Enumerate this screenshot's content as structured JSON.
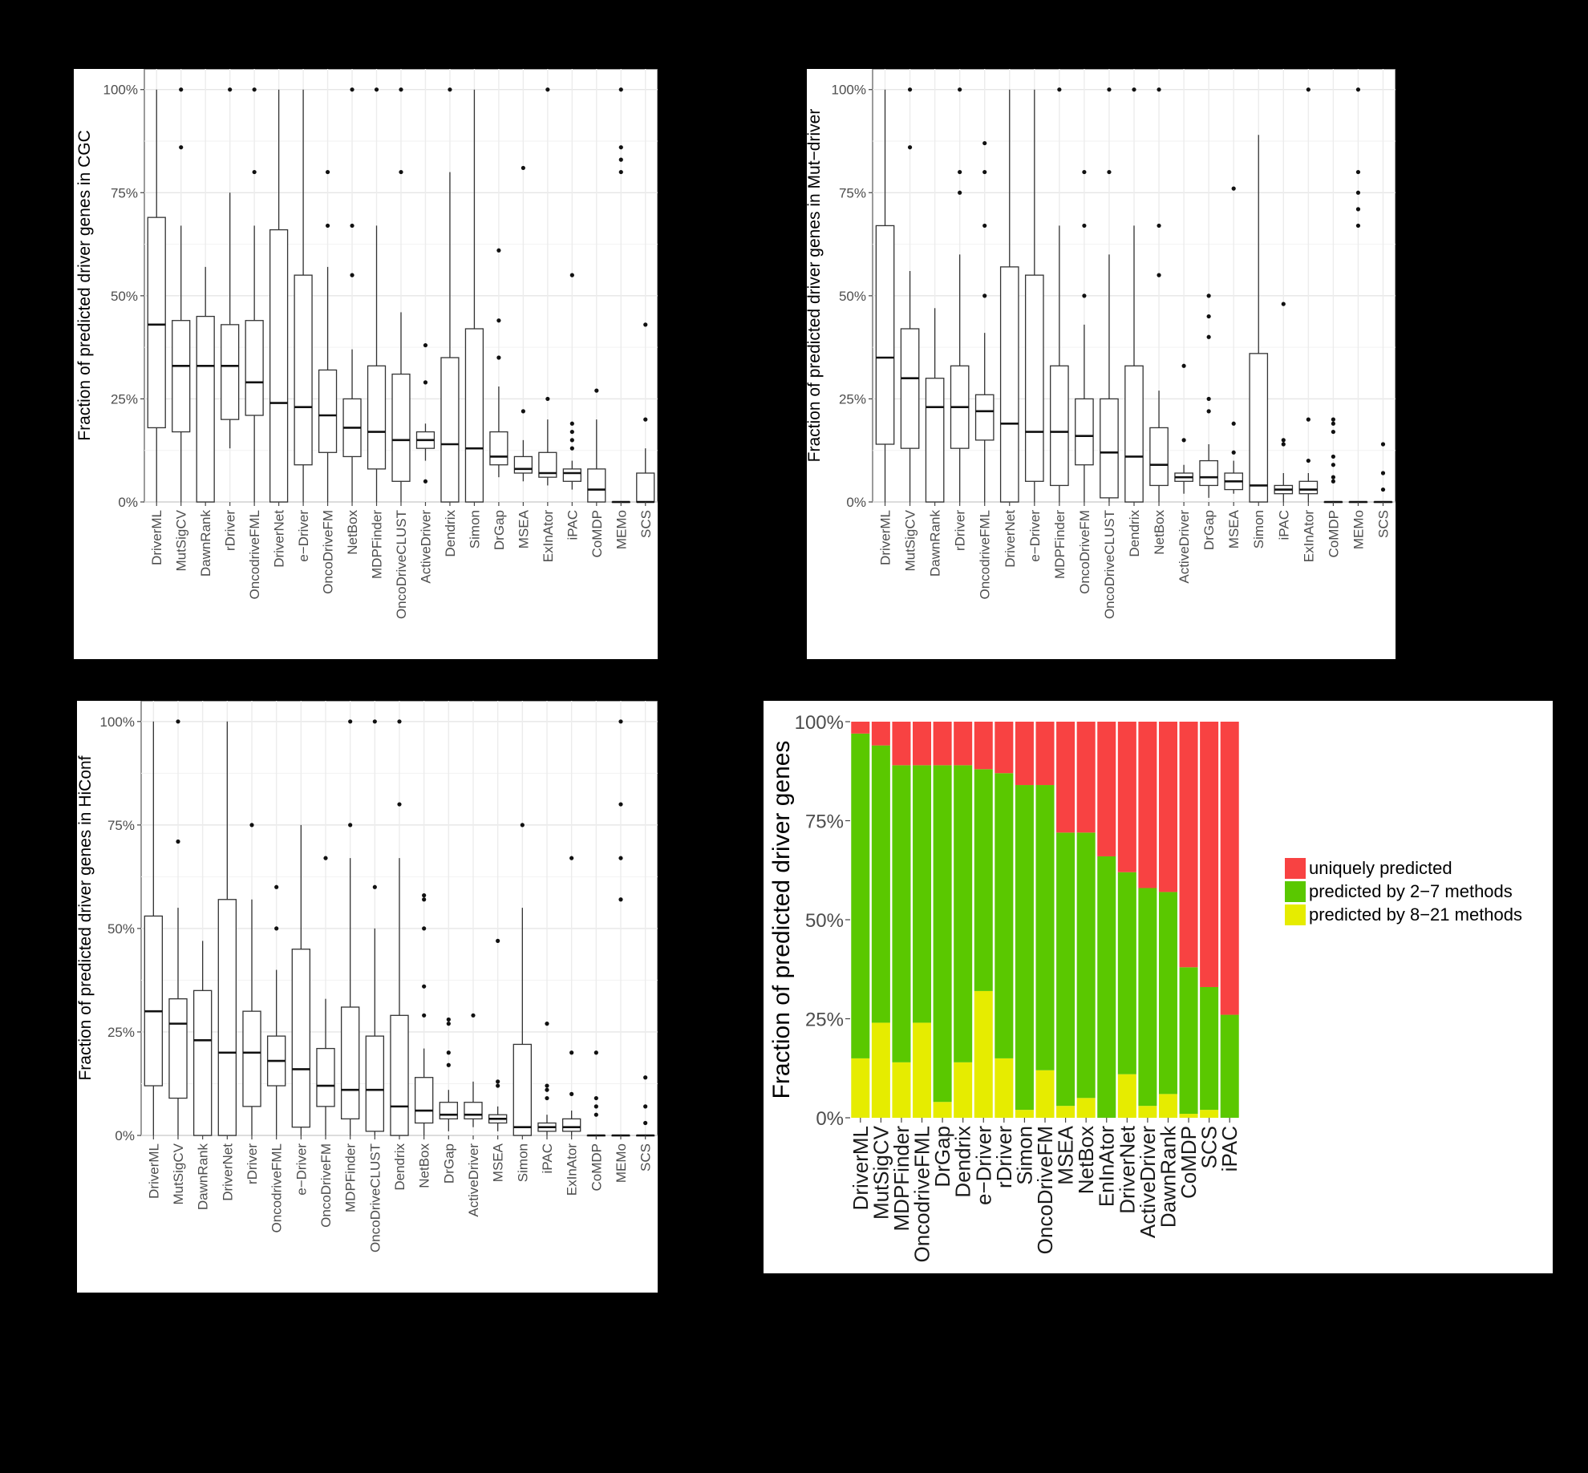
{
  "caption": {
    "line1": "",
    "line2": ""
  },
  "chart_data": [
    {
      "type": "boxplot",
      "ylabel": "Fraction of predicted driver genes in CGC",
      "yticks": [
        "0%",
        "25%",
        "50%",
        "75%",
        "100%"
      ],
      "ylim": [
        0,
        1.05
      ],
      "grid": true,
      "categories": [
        "DriverML",
        "MutSigCV",
        "DawnRank",
        "rDriver",
        "OncodriveFML",
        "DriverNet",
        "e−Driver",
        "OncoDriveFM",
        "NetBox",
        "MDPFinder",
        "OncoDriveCLUST",
        "ActiveDriver",
        "Dendrix",
        "Simon",
        "DrGap",
        "MSEA",
        "ExInAtor",
        "iPAC",
        "CoMDP",
        "MEMo",
        "SCS"
      ],
      "boxes": [
        {
          "lw": 0,
          "q1": 0.18,
          "med": 0.43,
          "q3": 0.69,
          "hw": 1.0,
          "out": []
        },
        {
          "lw": 0,
          "q1": 0.17,
          "med": 0.33,
          "q3": 0.44,
          "hw": 0.67,
          "out": [
            0.86,
            1.0
          ]
        },
        {
          "lw": 0,
          "q1": 0,
          "med": 0.33,
          "q3": 0.45,
          "hw": 0.57,
          "out": []
        },
        {
          "lw": 0.13,
          "q1": 0.2,
          "med": 0.33,
          "q3": 0.43,
          "hw": 0.75,
          "out": [
            1.0
          ]
        },
        {
          "lw": 0,
          "q1": 0.21,
          "med": 0.29,
          "q3": 0.44,
          "hw": 0.67,
          "out": [
            0.8,
            1.0
          ]
        },
        {
          "lw": 0,
          "q1": 0,
          "med": 0.24,
          "q3": 0.66,
          "hw": 1.0,
          "out": []
        },
        {
          "lw": 0,
          "q1": 0.09,
          "med": 0.23,
          "q3": 0.55,
          "hw": 1.0,
          "out": []
        },
        {
          "lw": 0,
          "q1": 0.12,
          "med": 0.21,
          "q3": 0.32,
          "hw": 0.57,
          "out": [
            0.67,
            0.8
          ]
        },
        {
          "lw": 0,
          "q1": 0.11,
          "med": 0.18,
          "q3": 0.25,
          "hw": 0.37,
          "out": [
            0.55,
            0.67,
            1.0
          ]
        },
        {
          "lw": 0,
          "q1": 0.08,
          "med": 0.17,
          "q3": 0.33,
          "hw": 0.67,
          "out": [
            1.0
          ]
        },
        {
          "lw": 0,
          "q1": 0.05,
          "med": 0.15,
          "q3": 0.31,
          "hw": 0.46,
          "out": [
            0.8,
            1.0
          ]
        },
        {
          "lw": 0.1,
          "q1": 0.13,
          "med": 0.15,
          "q3": 0.17,
          "hw": 0.19,
          "out": [
            0.05,
            0.29,
            0.38
          ]
        },
        {
          "lw": 0,
          "q1": 0,
          "med": 0.14,
          "q3": 0.35,
          "hw": 0.8,
          "out": [
            1.0
          ]
        },
        {
          "lw": 0,
          "q1": 0,
          "med": 0.13,
          "q3": 0.42,
          "hw": 1.0,
          "out": []
        },
        {
          "lw": 0.06,
          "q1": 0.09,
          "med": 0.11,
          "q3": 0.17,
          "hw": 0.28,
          "out": [
            0.35,
            0.44,
            0.61
          ]
        },
        {
          "lw": 0.05,
          "q1": 0.07,
          "med": 0.08,
          "q3": 0.11,
          "hw": 0.15,
          "out": [
            0.22,
            0.81
          ]
        },
        {
          "lw": 0.04,
          "q1": 0.06,
          "med": 0.07,
          "q3": 0.12,
          "hw": 0.2,
          "out": [
            0.25,
            1.0
          ]
        },
        {
          "lw": 0.03,
          "q1": 0.05,
          "med": 0.07,
          "q3": 0.08,
          "hw": 0.1,
          "out": [
            0.13,
            0.15,
            0.17,
            0.19,
            0.55
          ]
        },
        {
          "lw": 0,
          "q1": 0,
          "med": 0.03,
          "q3": 0.08,
          "hw": 0.2,
          "out": [
            0.27
          ]
        },
        {
          "lw": 0,
          "q1": 0,
          "med": 0,
          "q3": 0,
          "hw": 0,
          "out": [
            0.8,
            0.83,
            0.86,
            1.0
          ]
        },
        {
          "lw": 0,
          "q1": 0,
          "med": 0,
          "q3": 0.07,
          "hw": 0.13,
          "out": [
            0.2,
            0.43
          ]
        }
      ]
    },
    {
      "type": "boxplot",
      "ylabel": "Fraction of predicted driver genes in Mut−driver",
      "yticks": [
        "0%",
        "25%",
        "50%",
        "75%",
        "100%"
      ],
      "ylim": [
        0,
        1.05
      ],
      "grid": true,
      "categories": [
        "DriverML",
        "MutSigCV",
        "DawnRank",
        "rDriver",
        "OncodriveFML",
        "DriverNet",
        "e−Driver",
        "MDPFinder",
        "OncoDriveFM",
        "OncoDriveCLUST",
        "Dendrix",
        "NetBox",
        "ActiveDriver",
        "DrGap",
        "MSEA",
        "Simon",
        "iPAC",
        "ExInAtor",
        "CoMDP",
        "MEMo",
        "SCS"
      ],
      "boxes": [
        {
          "lw": 0,
          "q1": 0.14,
          "med": 0.35,
          "q3": 0.67,
          "hw": 1.0,
          "out": []
        },
        {
          "lw": 0,
          "q1": 0.13,
          "med": 0.3,
          "q3": 0.42,
          "hw": 0.56,
          "out": [
            0.86,
            1.0
          ]
        },
        {
          "lw": 0,
          "q1": 0,
          "med": 0.23,
          "q3": 0.3,
          "hw": 0.47,
          "out": []
        },
        {
          "lw": 0,
          "q1": 0.13,
          "med": 0.23,
          "q3": 0.33,
          "hw": 0.6,
          "out": [
            0.75,
            0.8,
            1.0
          ]
        },
        {
          "lw": 0,
          "q1": 0.15,
          "med": 0.22,
          "q3": 0.26,
          "hw": 0.41,
          "out": [
            0.5,
            0.67,
            0.8,
            0.87
          ]
        },
        {
          "lw": 0,
          "q1": 0,
          "med": 0.19,
          "q3": 0.57,
          "hw": 1.0,
          "out": []
        },
        {
          "lw": 0,
          "q1": 0.05,
          "med": 0.17,
          "q3": 0.55,
          "hw": 1.0,
          "out": []
        },
        {
          "lw": 0,
          "q1": 0.04,
          "med": 0.17,
          "q3": 0.33,
          "hw": 0.67,
          "out": [
            1.0
          ]
        },
        {
          "lw": 0,
          "q1": 0.09,
          "med": 0.16,
          "q3": 0.25,
          "hw": 0.43,
          "out": [
            0.5,
            0.67,
            0.8
          ]
        },
        {
          "lw": 0,
          "q1": 0.01,
          "med": 0.12,
          "q3": 0.25,
          "hw": 0.6,
          "out": [
            0.8,
            1.0
          ]
        },
        {
          "lw": 0,
          "q1": 0,
          "med": 0.11,
          "q3": 0.33,
          "hw": 0.67,
          "out": [
            1.0
          ]
        },
        {
          "lw": 0,
          "q1": 0.04,
          "med": 0.09,
          "q3": 0.18,
          "hw": 0.27,
          "out": [
            0.55,
            0.67,
            1.0
          ]
        },
        {
          "lw": 0.02,
          "q1": 0.05,
          "med": 0.06,
          "q3": 0.07,
          "hw": 0.09,
          "out": [
            0.15,
            0.33
          ]
        },
        {
          "lw": 0.01,
          "q1": 0.04,
          "med": 0.06,
          "q3": 0.1,
          "hw": 0.14,
          "out": [
            0.22,
            0.25,
            0.4,
            0.45,
            0.5
          ]
        },
        {
          "lw": 0.02,
          "q1": 0.03,
          "med": 0.05,
          "q3": 0.07,
          "hw": 0.1,
          "out": [
            0.12,
            0.19,
            0.76
          ]
        },
        {
          "lw": 0,
          "q1": 0,
          "med": 0.04,
          "q3": 0.36,
          "hw": 0.89,
          "out": []
        },
        {
          "lw": 0,
          "q1": 0.02,
          "med": 0.03,
          "q3": 0.04,
          "hw": 0.07,
          "out": [
            0.14,
            0.15,
            0.48
          ]
        },
        {
          "lw": 0,
          "q1": 0.02,
          "med": 0.03,
          "q3": 0.05,
          "hw": 0.07,
          "out": [
            0.1,
            0.2,
            1.0
          ]
        },
        {
          "lw": 0,
          "q1": 0,
          "med": 0,
          "q3": 0,
          "hw": 0,
          "out": [
            0.05,
            0.06,
            0.09,
            0.11,
            0.17,
            0.19,
            0.2
          ]
        },
        {
          "lw": 0,
          "q1": 0,
          "med": 0,
          "q3": 0,
          "hw": 0,
          "out": [
            0.67,
            0.71,
            0.75,
            0.8,
            1.0
          ]
        },
        {
          "lw": 0,
          "q1": 0,
          "med": 0,
          "q3": 0,
          "hw": 0,
          "out": [
            0.03,
            0.07,
            0.14
          ]
        }
      ]
    },
    {
      "type": "boxplot",
      "ylabel": "Fraction of predicted driver genes in HiConf",
      "yticks": [
        "0%",
        "25%",
        "50%",
        "75%",
        "100%"
      ],
      "ylim": [
        0,
        1.05
      ],
      "grid": true,
      "categories": [
        "DriverML",
        "MutSigCV",
        "DawnRank",
        "DriverNet",
        "rDriver",
        "OncodriveFML",
        "e−Driver",
        "OncoDriveFM",
        "MDPFinder",
        "OncoDriveCLUST",
        "Dendrix",
        "NetBox",
        "DrGap",
        "ActiveDriver",
        "MSEA",
        "Simon",
        "iPAC",
        "ExInAtor",
        "CoMDP",
        "MEMo",
        "SCS"
      ],
      "boxes": [
        {
          "lw": 0,
          "q1": 0.12,
          "med": 0.3,
          "q3": 0.53,
          "hw": 1.0,
          "out": []
        },
        {
          "lw": 0,
          "q1": 0.09,
          "med": 0.27,
          "q3": 0.33,
          "hw": 0.55,
          "out": [
            0.71,
            1.0
          ]
        },
        {
          "lw": 0,
          "q1": 0,
          "med": 0.23,
          "q3": 0.35,
          "hw": 0.47,
          "out": []
        },
        {
          "lw": 0,
          "q1": 0,
          "med": 0.2,
          "q3": 0.57,
          "hw": 1.0,
          "out": []
        },
        {
          "lw": 0,
          "q1": 0.07,
          "med": 0.2,
          "q3": 0.3,
          "hw": 0.57,
          "out": [
            0.75
          ]
        },
        {
          "lw": 0,
          "q1": 0.12,
          "med": 0.18,
          "q3": 0.24,
          "hw": 0.4,
          "out": [
            0.5,
            0.6
          ]
        },
        {
          "lw": 0,
          "q1": 0.02,
          "med": 0.16,
          "q3": 0.45,
          "hw": 0.75,
          "out": []
        },
        {
          "lw": 0,
          "q1": 0.07,
          "med": 0.12,
          "q3": 0.21,
          "hw": 0.33,
          "out": [
            0.67
          ]
        },
        {
          "lw": 0,
          "q1": 0.04,
          "med": 0.11,
          "q3": 0.31,
          "hw": 0.67,
          "out": [
            0.75,
            1.0
          ]
        },
        {
          "lw": 0,
          "q1": 0.01,
          "med": 0.11,
          "q3": 0.24,
          "hw": 0.5,
          "out": [
            0.6,
            1.0
          ]
        },
        {
          "lw": 0,
          "q1": 0,
          "med": 0.07,
          "q3": 0.29,
          "hw": 0.67,
          "out": [
            0.8,
            1.0
          ]
        },
        {
          "lw": 0,
          "q1": 0.03,
          "med": 0.06,
          "q3": 0.14,
          "hw": 0.21,
          "out": [
            0.29,
            0.36,
            0.5,
            0.57,
            0.58
          ]
        },
        {
          "lw": 0.01,
          "q1": 0.04,
          "med": 0.05,
          "q3": 0.08,
          "hw": 0.11,
          "out": [
            0.17,
            0.2,
            0.27,
            0.28
          ]
        },
        {
          "lw": 0.02,
          "q1": 0.04,
          "med": 0.05,
          "q3": 0.08,
          "hw": 0.13,
          "out": [
            0.29
          ]
        },
        {
          "lw": 0.01,
          "q1": 0.03,
          "med": 0.04,
          "q3": 0.05,
          "hw": 0.07,
          "out": [
            0.12,
            0.13,
            0.47
          ]
        },
        {
          "lw": 0,
          "q1": 0,
          "med": 0.02,
          "q3": 0.22,
          "hw": 0.55,
          "out": [
            0.75
          ]
        },
        {
          "lw": 0,
          "q1": 0.01,
          "med": 0.02,
          "q3": 0.03,
          "hw": 0.05,
          "out": [
            0.09,
            0.11,
            0.12,
            0.27
          ]
        },
        {
          "lw": 0,
          "q1": 0.01,
          "med": 0.02,
          "q3": 0.04,
          "hw": 0.06,
          "out": [
            0.1,
            0.2,
            0.67
          ]
        },
        {
          "lw": 0,
          "q1": 0,
          "med": 0,
          "q3": 0,
          "hw": 0,
          "out": [
            0.05,
            0.07,
            0.09,
            0.2
          ]
        },
        {
          "lw": 0,
          "q1": 0,
          "med": 0,
          "q3": 0,
          "hw": 0,
          "out": [
            0.57,
            0.67,
            0.8,
            1.0
          ]
        },
        {
          "lw": 0,
          "q1": 0,
          "med": 0,
          "q3": 0,
          "hw": 0,
          "out": [
            0.03,
            0.07,
            0.14
          ]
        }
      ]
    },
    {
      "type": "bar",
      "stacked": true,
      "ylabel": "Fraction of predicted driver genes",
      "yticks": [
        "0%",
        "25%",
        "50%",
        "75%",
        "100%"
      ],
      "ylim": [
        0,
        1
      ],
      "legend_position": "right",
      "categories": [
        "DriverML",
        "MutSigCV",
        "MDPFinder",
        "OncodriveFML",
        "DrGap",
        "Dendrix",
        "e−Driver",
        "rDriver",
        "Simon",
        "OncoDriveFM",
        "MSEA",
        "NetBox",
        "EnInAtor",
        "DriverNet",
        "ActiveDriver",
        "DawnRank",
        "CoMDP",
        "SCS",
        "iPAC"
      ],
      "series": [
        {
          "name": "predicted by 8−21 methods",
          "color": "#e6ec00",
          "values": [
            0.15,
            0.24,
            0.14,
            0.24,
            0.04,
            0.14,
            0.32,
            0.15,
            0.02,
            0.12,
            0.03,
            0.05,
            0.0,
            0.11,
            0.03,
            0.06,
            0.01,
            0.02,
            0.0
          ]
        },
        {
          "name": "predicted by 2−7 methods",
          "color": "#5ac800",
          "values": [
            0.82,
            0.7,
            0.75,
            0.65,
            0.85,
            0.75,
            0.56,
            0.72,
            0.82,
            0.72,
            0.69,
            0.67,
            0.66,
            0.51,
            0.55,
            0.51,
            0.37,
            0.31,
            0.26
          ]
        },
        {
          "name": "uniquely predicted",
          "color": "#f84242",
          "values": [
            0.03,
            0.06,
            0.11,
            0.11,
            0.11,
            0.11,
            0.12,
            0.13,
            0.16,
            0.16,
            0.28,
            0.28,
            0.34,
            0.38,
            0.42,
            0.43,
            0.62,
            0.67,
            0.74
          ]
        }
      ],
      "legend_order": [
        "uniquely predicted",
        "predicted by 2−7 methods",
        "predicted by 8−21 methods"
      ]
    }
  ]
}
